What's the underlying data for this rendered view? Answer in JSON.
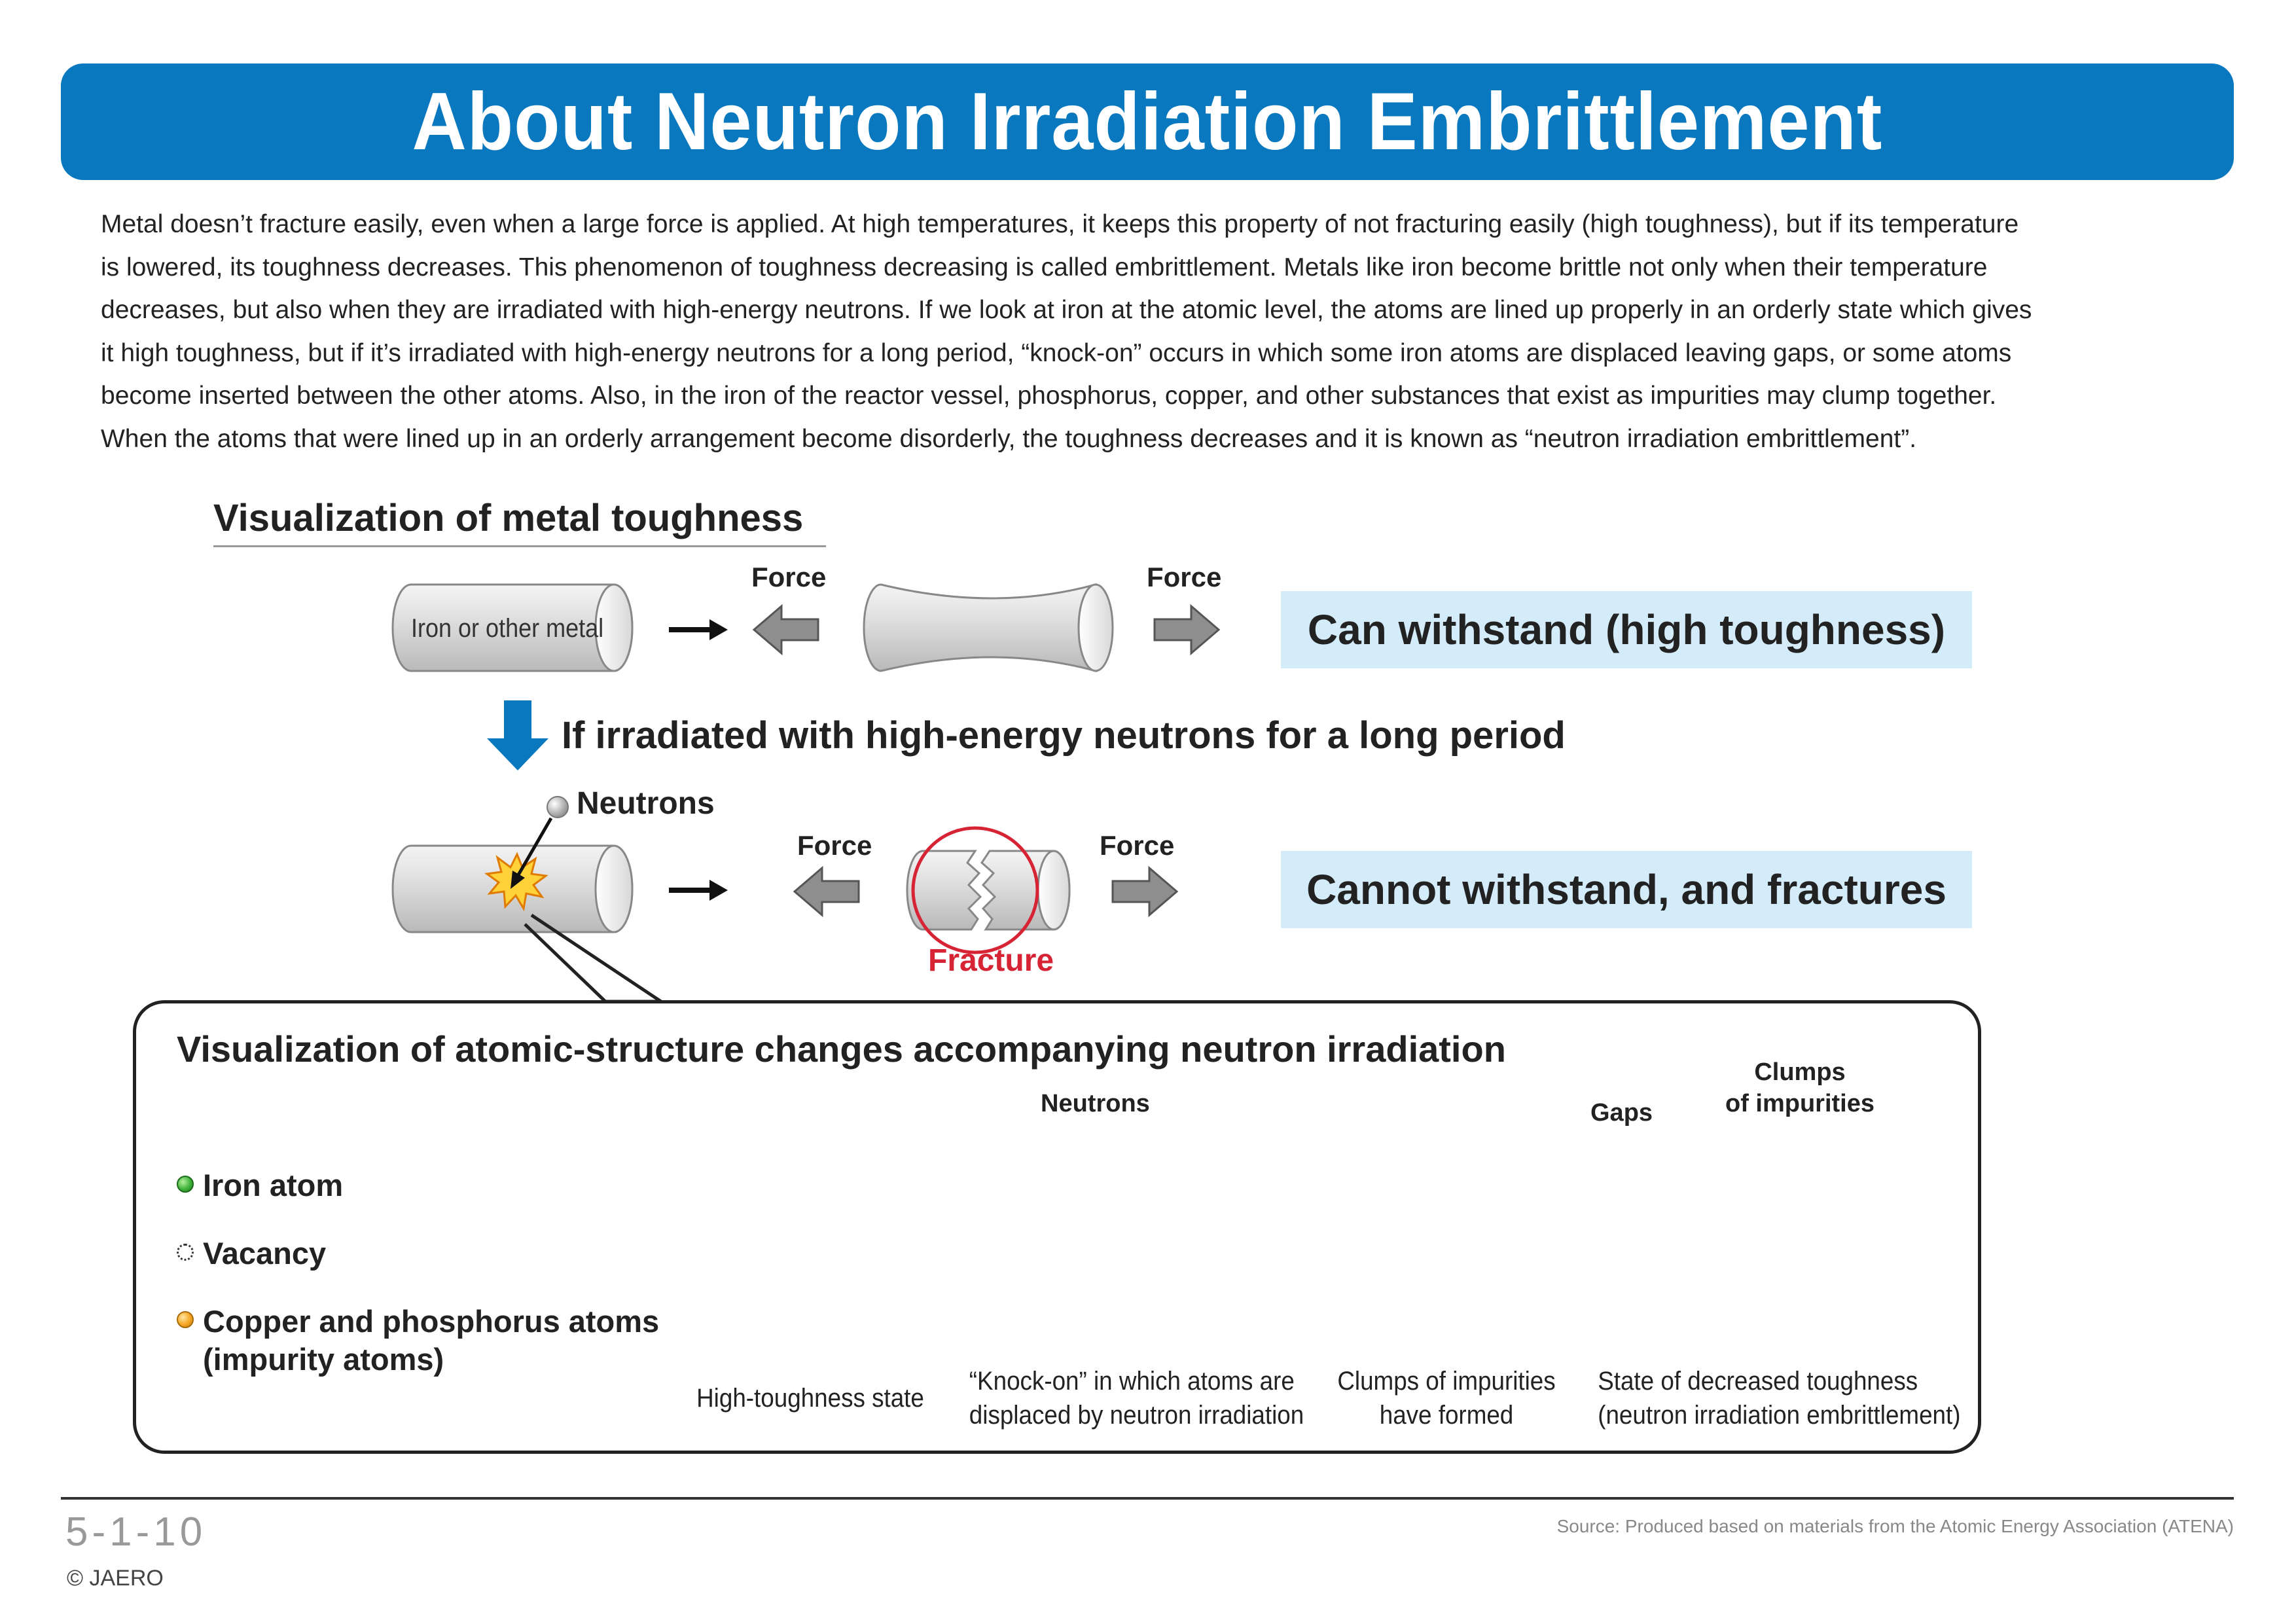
{
  "header": {
    "title": "About Neutron Irradiation Embrittlement"
  },
  "intro": {
    "lines": [
      "Metal doesn’t fracture easily, even when a large force is applied. At high temperatures, it keeps this property of not fracturing easily (high toughness), but if its temperature",
      "is lowered, its toughness decreases. This phenomenon of toughness decreasing is called embrittlement. Metals like iron become brittle not only when their temperature",
      "decreases, but also when they are irradiated with high-energy neutrons. If we look at iron at the atomic level, the atoms are lined up properly in an orderly state which gives",
      "it high toughness, but if it’s irradiated with high-energy neutrons for a long period, “knock-on” occurs in which some iron atoms are displaced leaving gaps, or some atoms",
      "become inserted between the other atoms. Also, in the iron of the reactor vessel, phosphorus, copper, and other substances that exist as impurities may clump together.",
      "When the atoms that were lined up in an orderly arrangement become disorderly, the toughness decreases and it is known as “neutron irradiation embrittlement”."
    ]
  },
  "toughness": {
    "heading": "Visualization of metal toughness",
    "cylinder_label": "Iron or other metal",
    "force_left": "Force",
    "force_right": "Force",
    "result": "Can withstand (high toughness)"
  },
  "irradiation": {
    "text": "If irradiated with high-energy neutrons for a long period",
    "neutrons_label": "Neutrons",
    "force_left": "Force",
    "force_right": "Force",
    "fracture_label": "Fracture",
    "result": "Cannot withstand, and fractures"
  },
  "atomic": {
    "heading": "Visualization of atomic-structure changes accompanying neutron irradiation",
    "legend": {
      "iron": "Iron atom",
      "vacancy": "Vacancy",
      "impurity_line1": "Copper and phosphorus atoms",
      "impurity_line2": "(impurity atoms)"
    },
    "neutrons_label": "Neutrons",
    "gaps_label": "Gaps",
    "clumps_line1": "Clumps",
    "clumps_line2": "of impurities",
    "stages": [
      {
        "line1": "High-toughness state",
        "line2": ""
      },
      {
        "line1": "“Knock-on” in which atoms are",
        "line2": "displaced by neutron irradiation"
      },
      {
        "line1": "Clumps of impurities",
        "line2": "have formed"
      },
      {
        "line1": "State of decreased toughness",
        "line2": "(neutron irradiation embrittlement)"
      }
    ]
  },
  "footer": {
    "page_number": "5-1-10",
    "copyright": "© JAERO",
    "source": "Source: Produced based on materials from the Atomic Energy Association (ATENA)"
  },
  "colors": {
    "title_bar": "#0a78be",
    "result_box": "#d4ebfa",
    "fracture": "#d62434",
    "iron_atom": "#3fb23a",
    "impurity_atom": "#f5a623"
  }
}
